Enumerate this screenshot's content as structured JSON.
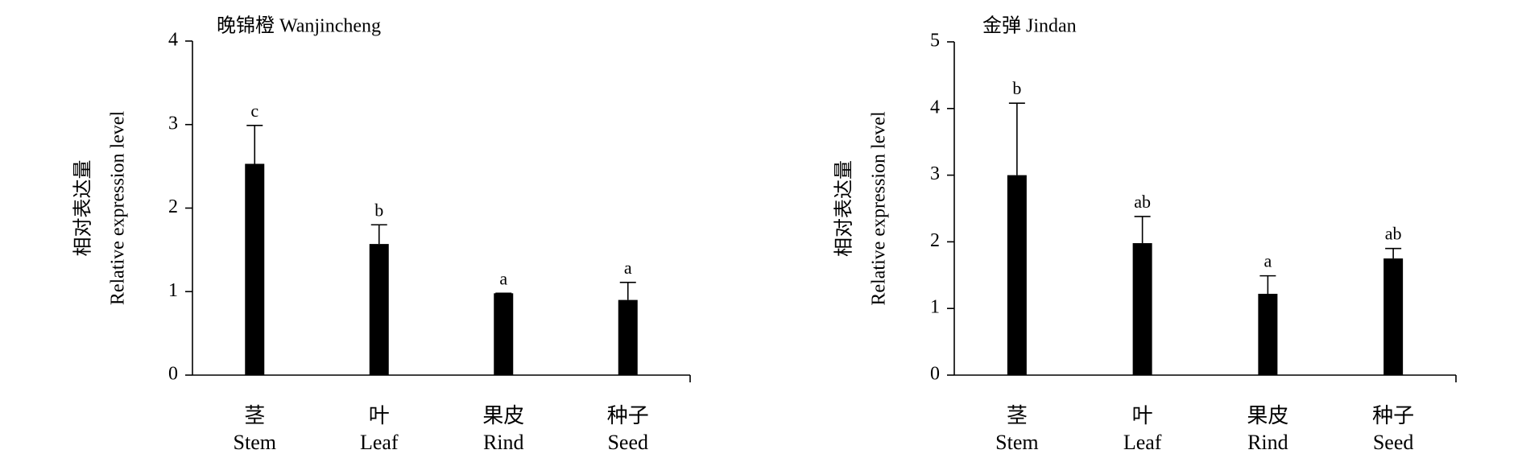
{
  "chart_data": [
    {
      "type": "bar",
      "title": "晚锦橙 Wanjincheng",
      "ylabel": [
        "相对表达量",
        "Relative expression level"
      ],
      "categories": [
        "茎",
        "叶",
        "果皮",
        "种子"
      ],
      "categories_en": [
        "Stem",
        "Leaf",
        "Rind",
        "Seed"
      ],
      "values": [
        2.53,
        1.57,
        0.98,
        0.9
      ],
      "errors": [
        0.46,
        0.23,
        0,
        0.21
      ],
      "letters": [
        "c",
        "b",
        "a",
        "a"
      ],
      "color": "#000000",
      "ylim": [
        0,
        4
      ],
      "yticks": [
        0,
        1,
        2,
        3,
        4
      ]
    },
    {
      "type": "bar",
      "title": "金弹 Jindan",
      "ylabel": [
        "相对表达量",
        "Relative expression level"
      ],
      "categories": [
        "茎",
        "叶",
        "果皮",
        "种子"
      ],
      "categories_en": [
        "Stem",
        "Leaf",
        "Rind",
        "Seed"
      ],
      "values": [
        3.0,
        1.98,
        1.22,
        1.75
      ],
      "errors": [
        1.08,
        0.4,
        0.27,
        0.15
      ],
      "letters": [
        "b",
        "ab",
        "a",
        "ab"
      ],
      "color": "#000000",
      "ylim": [
        0,
        5
      ],
      "yticks": [
        0,
        1,
        2,
        3,
        4,
        5
      ]
    }
  ]
}
